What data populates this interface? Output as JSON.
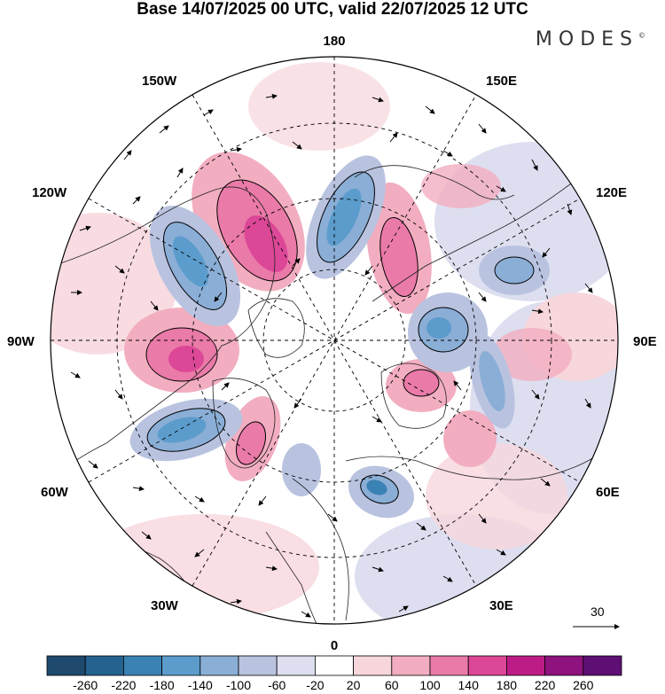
{
  "title": "Base 14/07/2025 00 UTC, valid 22/07/2025 12 UTC",
  "brand": {
    "name": "MODES",
    "mark": "©"
  },
  "map": {
    "projection": "north-polar-stereographic",
    "longitude_labels": {
      "top": "180",
      "bottom": "0",
      "left": "90W",
      "right": "90E",
      "upper_left_1": "150W",
      "upper_left_2": "120W",
      "upper_right_1": "150E",
      "upper_right_2": "120E",
      "lower_left_1": "60W",
      "lower_left_2": "30W",
      "lower_right_1": "60E",
      "lower_right_2": "30E"
    },
    "wind_reference": {
      "label": "30"
    }
  },
  "colorbar": {
    "levels": [
      "-260",
      "-220",
      "-180",
      "-140",
      "-100",
      "-60",
      "-20",
      "20",
      "60",
      "100",
      "140",
      "180",
      "220",
      "260"
    ],
    "colors": [
      "#1f4a6e",
      "#24628f",
      "#3b82b4",
      "#5b9ccc",
      "#8aaed6",
      "#b9c3e0",
      "#dddff0",
      "#ffffff",
      "#f7d6dc",
      "#f2aec0",
      "#ea7aa8",
      "#dc4797",
      "#bd1c86",
      "#8e137e",
      "#5d0f74"
    ]
  }
}
